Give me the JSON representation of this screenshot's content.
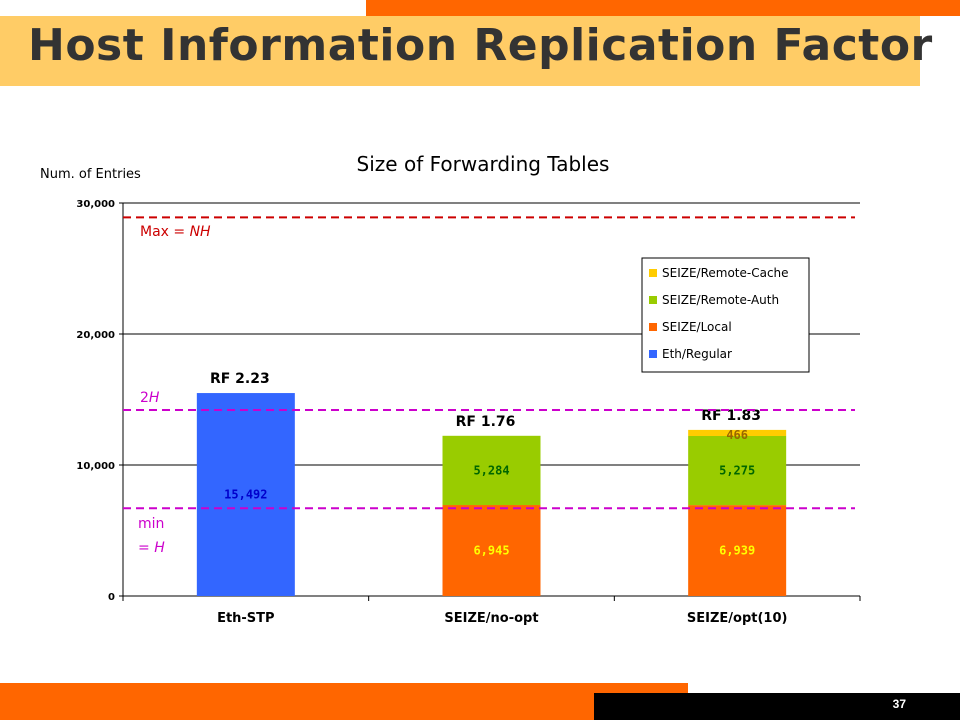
{
  "slide": {
    "title": "Host Information Replication Factor",
    "page_number": "37"
  },
  "colors": {
    "accent_orange": "#ff6600",
    "title_band": "#ffcc66",
    "eth_regular": "#3366ff",
    "seize_local": "#ff6600",
    "seize_remote_auth": "#99cc00",
    "seize_remote_cache": "#ffcc00",
    "max_line": "#cc0000",
    "h_lines": "#cc00cc"
  },
  "chart_data": {
    "type": "bar",
    "stacked": true,
    "title": "Size of Forwarding Tables",
    "ylabel": "Num. of Entries",
    "xlabel": "",
    "ylim": [
      0,
      30000
    ],
    "yticks": [
      0,
      10000,
      20000,
      30000
    ],
    "ytick_labels": [
      "0",
      "10,000",
      "20,000",
      "30,000"
    ],
    "grid": true,
    "legend_position": "right",
    "categories": [
      "Eth-STP",
      "SEIZE/no-opt",
      "SEIZE/opt(10)"
    ],
    "series": [
      {
        "name": "Eth/Regular",
        "color": "#3366ff",
        "values": [
          15492,
          0,
          0
        ],
        "labels": [
          "15,492",
          "",
          ""
        ],
        "label_color": "#0000cc"
      },
      {
        "name": "SEIZE/Local",
        "color": "#ff6600",
        "values": [
          0,
          6945,
          6939
        ],
        "labels": [
          "",
          "6,945",
          "6,939"
        ],
        "label_color": "#ffff00"
      },
      {
        "name": "SEIZE/Remote-Auth",
        "color": "#99cc00",
        "values": [
          0,
          5284,
          5275
        ],
        "labels": [
          "",
          "5,284",
          "5,275"
        ],
        "label_color": "#006600"
      },
      {
        "name": "SEIZE/Remote-Cache",
        "color": "#ffcc00",
        "values": [
          0,
          0,
          466
        ],
        "labels": [
          "",
          "",
          "466"
        ],
        "label_color": "#996600"
      }
    ],
    "legend_order": [
      "SEIZE/Remote-Cache",
      "SEIZE/Remote-Auth",
      "SEIZE/Local",
      "Eth/Regular"
    ],
    "bar_annotations": [
      "RF 2.23",
      "RF 1.76",
      "RF 1.83"
    ],
    "reference_lines": [
      {
        "value": 28900,
        "label_parts": [
          "Max = ",
          "NH"
        ],
        "color": "#cc0000"
      },
      {
        "value": 14200,
        "label_parts": [
          "2",
          "H"
        ],
        "color": "#cc00cc"
      },
      {
        "value": 6700,
        "label_parts": [
          "min",
          "= ",
          "H"
        ],
        "color": "#cc00cc"
      }
    ]
  }
}
